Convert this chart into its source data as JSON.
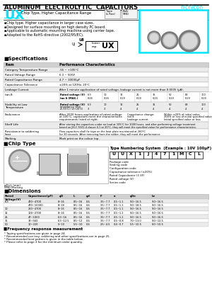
{
  "title": "ALUMINUM  ELECTROLYTIC  CAPACITORS",
  "brand": "nichicon",
  "series": "UX",
  "series_desc": "Chip Type, Higher Capacitance Range",
  "features": [
    "Chip type. Higher capacitance in larger case sizes.",
    "Designed for surface mounting on high density PC board.",
    "Applicable to automatic mounting machine using carrier tape.",
    "Adapted to the RoHS directive (2002/95/EC)."
  ],
  "spec_rows": [
    [
      "Category Temperature Range",
      "-55 ~ +105°C"
    ],
    [
      "Rated Voltage Range",
      "6.3 ~ 50(V)"
    ],
    [
      "Rated Capacitance Range",
      "4.7 ~ 10000μF"
    ],
    [
      "Capacitance Tolerance",
      "±20% at 120Hz, 20°C"
    ],
    [
      "Leakage Current",
      "After 1 minute application of rated voltage, leakage current is not more than 0.0005 (μA)."
    ]
  ],
  "bg_color": "#ffffff",
  "cyan_color": "#00e5ff",
  "gray_header": "#d0d0d0",
  "gray_row": "#ebebeb",
  "table_line": "#aaaaaa"
}
